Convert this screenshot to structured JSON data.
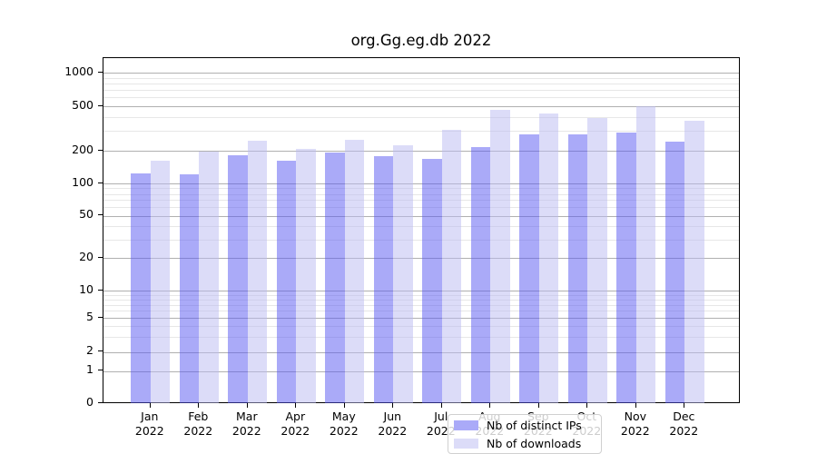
{
  "title": "org.Gg.eg.db 2022",
  "legend": {
    "items": [
      {
        "label": "Nb of distinct IPs",
        "color": "#aaaaf8",
        "bar_rgba": "rgba(85,85,241,0.5)"
      },
      {
        "label": "Nb of downloads",
        "color": "#dcdcf8",
        "bar_rgba": "rgba(185,185,242,0.5)"
      }
    ]
  },
  "chart_data": {
    "type": "bar",
    "title": "org.Gg.eg.db 2022",
    "categories": [
      "Jan 2022",
      "Feb 2022",
      "Mar 2022",
      "Apr 2022",
      "May 2022",
      "Jun 2022",
      "Jul 2022",
      "Aug 2022",
      "Sep 2022",
      "Oct 2022",
      "Nov 2022",
      "Dec 2022"
    ],
    "x_tick_line1": [
      "Jan",
      "Feb",
      "Mar",
      "Apr",
      "May",
      "Jun",
      "Jul",
      "Aug",
      "Sep",
      "Oct",
      "Nov",
      "Dec"
    ],
    "x_tick_line2": "2022",
    "series": [
      {
        "name": "Nb of distinct IPs",
        "color": "#aaaaf8",
        "values": [
          124,
          122,
          182,
          162,
          193,
          179,
          168,
          215,
          278,
          280,
          290,
          242
        ]
      },
      {
        "name": "Nb of downloads",
        "color": "#dcdcf8",
        "values": [
          162,
          196,
          246,
          208,
          252,
          224,
          310,
          465,
          430,
          391,
          500,
          368
        ]
      }
    ],
    "xlabel": "",
    "ylabel": "",
    "y_axis": {
      "scale": "symlog",
      "tick_labels": [
        "0",
        "1",
        "2",
        "5",
        "10",
        "20",
        "50",
        "100",
        "200",
        "500",
        "1000"
      ],
      "tick_values": [
        0,
        1,
        2,
        5,
        10,
        20,
        50,
        100,
        200,
        500,
        1000
      ],
      "minor_tick_values": [
        3,
        4,
        6,
        7,
        8,
        9,
        30,
        40,
        60,
        70,
        80,
        90,
        300,
        400,
        600,
        700,
        800,
        900
      ],
      "ylim": [
        0,
        1400
      ]
    },
    "grid": "horizontal major and minor, on",
    "legend_position": "lower center inside plot"
  }
}
